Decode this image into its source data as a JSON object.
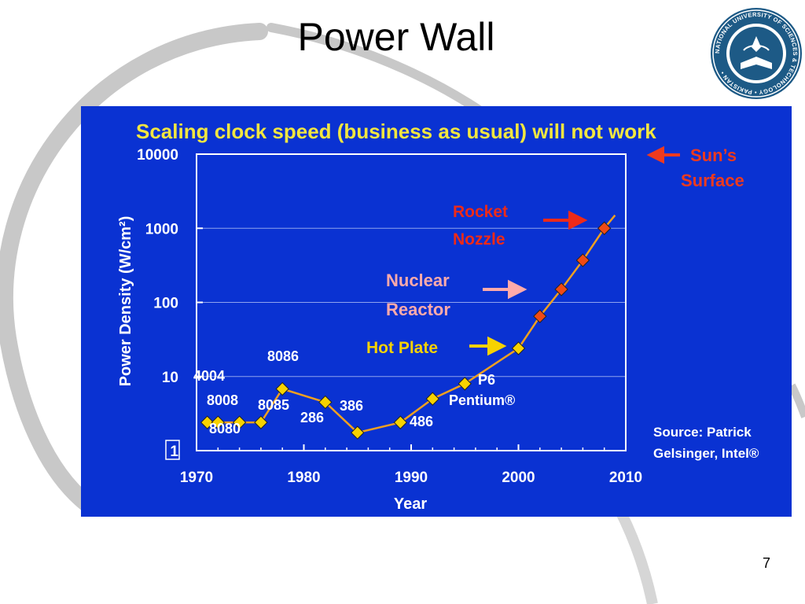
{
  "slide": {
    "title": "Power Wall",
    "page_number": "7",
    "logo_text": "NATIONAL UNIVERSITY OF SCIENCES & TECHNOLOGY • PAKISTAN •"
  },
  "colors": {
    "panel": "#0a32d2",
    "title_yellow": "#f2e640",
    "line": "#f0a020",
    "marker": "#f7d200",
    "marker_red": "#f04a14",
    "rocket_red": "#ee2a18",
    "nuclear_pink": "#ffaaaa",
    "hotplate_yellow": "#f7d200"
  },
  "chart_data": {
    "type": "line",
    "title": "Scaling clock speed (business as usual) will not work",
    "xlabel": "Year",
    "ylabel": "Power Density (W/cm²)",
    "xlim": [
      1970,
      2010
    ],
    "ylim": [
      1,
      10000
    ],
    "y_scale": "log",
    "x_ticks": [
      1970,
      1980,
      1990,
      2000,
      2010
    ],
    "x_tick_labels": [
      "1970",
      "1980",
      "1990",
      "2000",
      "2010"
    ],
    "y_ticks": [
      1,
      10,
      100,
      1000,
      10000
    ],
    "y_tick_labels": [
      "1",
      "10",
      "100",
      "1000",
      "10000"
    ],
    "grid": true,
    "series": [
      {
        "points": [
          {
            "x": 1971,
            "y": 2.4,
            "color": "yellow"
          },
          {
            "x": 1972,
            "y": 2.4,
            "color": "yellow"
          },
          {
            "x": 1974,
            "y": 2.4,
            "color": "yellow"
          },
          {
            "x": 1976,
            "y": 2.4,
            "color": "yellow"
          },
          {
            "x": 1978,
            "y": 6.8,
            "color": "yellow"
          },
          {
            "x": 1982,
            "y": 4.5,
            "color": "yellow"
          },
          {
            "x": 1985,
            "y": 1.75,
            "color": "yellow"
          },
          {
            "x": 1989,
            "y": 2.4,
            "color": "yellow"
          },
          {
            "x": 1992,
            "y": 5,
            "color": "yellow"
          },
          {
            "x": 1995,
            "y": 8,
            "color": "yellow"
          },
          {
            "x": 2000,
            "y": 24,
            "color": "yellow"
          },
          {
            "x": 2002,
            "y": 65,
            "color": "red"
          },
          {
            "x": 2004,
            "y": 150,
            "color": "red"
          },
          {
            "x": 2006,
            "y": 370,
            "color": "red"
          },
          {
            "x": 2008,
            "y": 1000,
            "color": "red"
          }
        ]
      }
    ],
    "point_labels": [
      "4004",
      "8008",
      "8080",
      "8085",
      "8086",
      "286",
      "386",
      "486",
      "P6",
      "Pentium®"
    ],
    "annotations": {
      "suns_surface": [
        "Sun’s",
        "Surface"
      ],
      "rocket_nozzle": [
        "Rocket",
        "Nozzle"
      ],
      "nuclear_reactor": [
        "Nuclear",
        "Reactor"
      ],
      "hot_plate": "Hot Plate",
      "source": [
        "Source: Patrick",
        "Gelsinger, Intel®"
      ]
    }
  }
}
